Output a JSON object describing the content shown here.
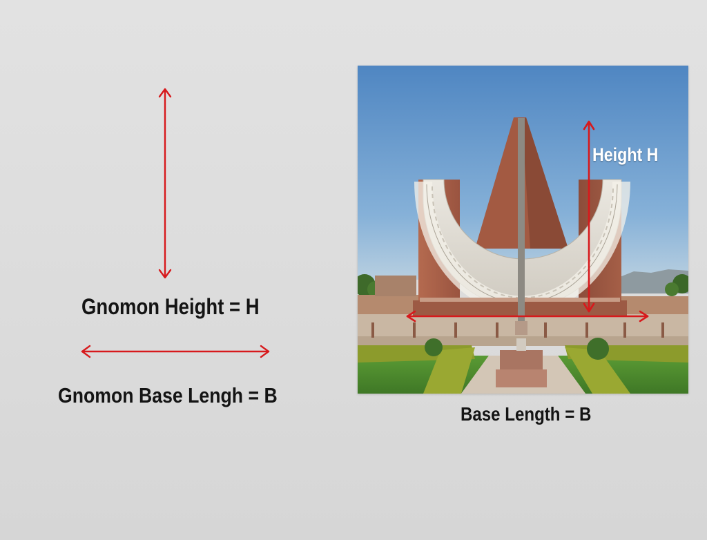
{
  "diagram": {
    "left_labels": {
      "height": "Gnomon Height = H",
      "base": "Gnomon Base Lengh = B"
    },
    "photo": {
      "height_label": "Height H",
      "base_label": "Base Length = B"
    },
    "colors": {
      "arrow": "#d7191c",
      "background": "#dedede",
      "sky": "#5d93c9",
      "sandstone": "#a45a43",
      "marble": "#ddd9d0",
      "lawn": "#4f8a2c",
      "hedge": "#8a9a2a"
    }
  }
}
